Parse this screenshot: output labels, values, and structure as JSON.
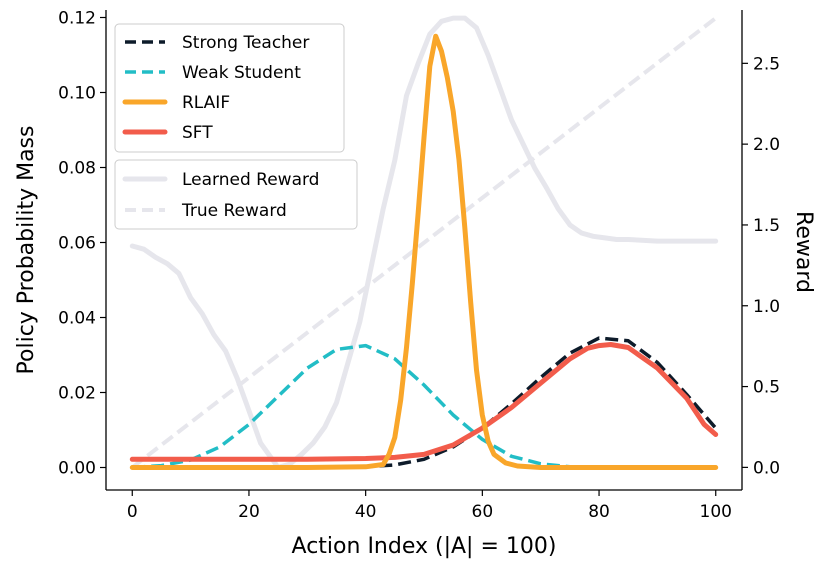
{
  "chart_data": {
    "type": "line",
    "xlabel": "Action Index (|A| = 100)",
    "ylabel": "Policy Probability Mass",
    "y2label": "Reward",
    "xlim": [
      -4.5,
      104.5
    ],
    "ylim": [
      -0.006,
      0.122
    ],
    "y2lim": [
      -0.14,
      2.83
    ],
    "xticks": [
      0,
      20,
      40,
      60,
      80,
      100
    ],
    "xtick_labels": [
      "0",
      "20",
      "40",
      "60",
      "80",
      "100"
    ],
    "yticks": [
      0.0,
      0.02,
      0.04,
      0.06,
      0.08,
      0.1,
      0.12
    ],
    "ytick_labels": [
      "0.00",
      "0.02",
      "0.04",
      "0.06",
      "0.08",
      "0.10",
      "0.12"
    ],
    "y2ticks": [
      0.0,
      0.5,
      1.0,
      1.5,
      2.0,
      2.5
    ],
    "y2tick_labels": [
      "0.0",
      "0.5",
      "1.0",
      "1.5",
      "2.0",
      "2.5"
    ],
    "legend_policy_placement": "top-left",
    "legend_reward_placement": "upper-left, below policy legend",
    "series": [
      {
        "name": "Learned Reward",
        "axis": "right",
        "color": "#e6e6ec",
        "style": "solid",
        "width": 5,
        "x": [
          0,
          2,
          4,
          6,
          8,
          10,
          12,
          14,
          16,
          18,
          20,
          22,
          24,
          25,
          27,
          29,
          31,
          33,
          35,
          37,
          39,
          41,
          43,
          45,
          47,
          49,
          51,
          53,
          55,
          56,
          57,
          59,
          61,
          63,
          65,
          67,
          69,
          71,
          73,
          75,
          77,
          79,
          81,
          83,
          85,
          90,
          95,
          100
        ],
        "y": [
          1.37,
          1.35,
          1.3,
          1.26,
          1.2,
          1.05,
          0.95,
          0.82,
          0.72,
          0.55,
          0.35,
          0.15,
          0.05,
          0.0,
          0.02,
          0.08,
          0.15,
          0.25,
          0.4,
          0.65,
          0.9,
          1.25,
          1.6,
          1.9,
          2.3,
          2.5,
          2.68,
          2.76,
          2.78,
          2.78,
          2.78,
          2.72,
          2.55,
          2.35,
          2.15,
          2.0,
          1.85,
          1.73,
          1.6,
          1.5,
          1.45,
          1.43,
          1.42,
          1.41,
          1.41,
          1.4,
          1.4,
          1.4
        ]
      },
      {
        "name": "True Reward",
        "axis": "right",
        "color": "#e6e6ec",
        "style": "dashed",
        "width": 4,
        "x": [
          0,
          100
        ],
        "y": [
          0.0,
          2.78
        ]
      },
      {
        "name": "Weak Student",
        "axis": "left",
        "color": "#22bdc6",
        "style": "dashed",
        "width": 3.5,
        "x": [
          0,
          5,
          10,
          15,
          20,
          25,
          30,
          35,
          40,
          45,
          50,
          55,
          60,
          65,
          70,
          75,
          80,
          85,
          90,
          95,
          100
        ],
        "y": [
          0.0,
          0.0005,
          0.002,
          0.0055,
          0.0115,
          0.019,
          0.0265,
          0.0315,
          0.0325,
          0.029,
          0.022,
          0.014,
          0.0075,
          0.003,
          0.001,
          0.0002,
          0.0,
          0.0,
          0.0,
          0.0,
          0.0
        ]
      },
      {
        "name": "Strong Teacher",
        "axis": "left",
        "color": "#0d1b2a",
        "style": "dashed",
        "width": 3.5,
        "x": [
          0,
          10,
          20,
          30,
          40,
          45,
          50,
          55,
          60,
          65,
          70,
          75,
          80,
          85,
          90,
          95,
          100
        ],
        "y": [
          0.0,
          0.0,
          0.0,
          0.0,
          0.0002,
          0.0007,
          0.0022,
          0.0055,
          0.0105,
          0.017,
          0.024,
          0.0305,
          0.0345,
          0.0338,
          0.028,
          0.0195,
          0.0105
        ]
      },
      {
        "name": "SFT",
        "axis": "left",
        "color": "#f25c4b",
        "style": "solid",
        "width": 5,
        "x": [
          0,
          10,
          20,
          30,
          40,
          45,
          50,
          55,
          60,
          65,
          70,
          75,
          78,
          80,
          82,
          85,
          90,
          95,
          98,
          100
        ],
        "y": [
          0.0022,
          0.0022,
          0.0022,
          0.0022,
          0.0024,
          0.0027,
          0.0035,
          0.006,
          0.0105,
          0.016,
          0.0225,
          0.029,
          0.0318,
          0.0325,
          0.0328,
          0.032,
          0.0265,
          0.0185,
          0.0115,
          0.0088
        ]
      },
      {
        "name": "RLAIF",
        "axis": "left",
        "color": "#f9a62a",
        "style": "solid",
        "width": 5,
        "x": [
          0,
          30,
          40,
          43,
          44,
          45,
          46,
          47,
          48,
          49,
          50,
          51,
          52,
          53,
          54,
          55,
          56,
          57,
          58,
          59,
          60,
          61,
          62,
          64,
          66,
          70,
          80,
          90,
          100
        ],
        "y": [
          0.0,
          0.0,
          0.0002,
          0.0008,
          0.0035,
          0.008,
          0.018,
          0.032,
          0.049,
          0.068,
          0.088,
          0.107,
          0.115,
          0.111,
          0.104,
          0.095,
          0.082,
          0.064,
          0.044,
          0.026,
          0.014,
          0.007,
          0.0035,
          0.0012,
          0.0004,
          0.0,
          0.0,
          0.0,
          0.0
        ]
      }
    ],
    "legend_policy": [
      "Strong Teacher",
      "Weak Student",
      "RLAIF",
      "SFT"
    ],
    "legend_reward": [
      "Learned Reward",
      "True Reward"
    ]
  }
}
